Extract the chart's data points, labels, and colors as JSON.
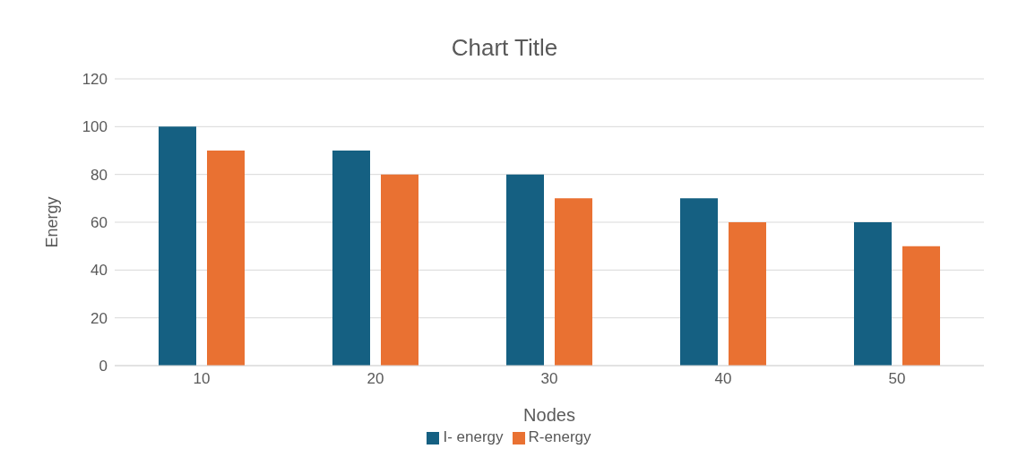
{
  "chart_data": {
    "type": "bar",
    "title": "Chart Title",
    "xlabel": "Nodes",
    "ylabel": "Energy",
    "categories": [
      "10",
      "20",
      "30",
      "40",
      "50"
    ],
    "series": [
      {
        "name": "I- energy",
        "color": "#156082",
        "values": [
          100,
          90,
          80,
          70,
          60
        ]
      },
      {
        "name": "R-energy",
        "color": "#e97132",
        "values": [
          90,
          80,
          70,
          60,
          50
        ]
      }
    ],
    "ylim": [
      0,
      120
    ],
    "yticks": [
      0,
      20,
      40,
      60,
      80,
      100,
      120
    ],
    "grid": "y",
    "legend": "bottom"
  }
}
